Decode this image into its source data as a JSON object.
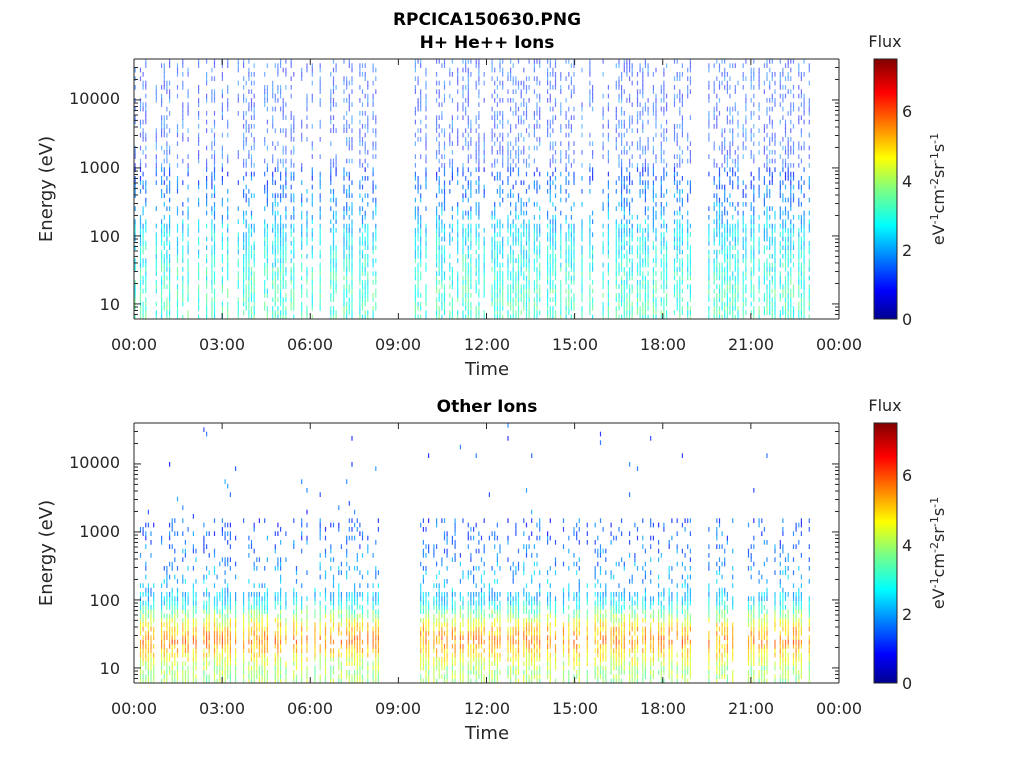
{
  "figure": {
    "title_line1": "RPCICA150630.PNG"
  },
  "chart_data": [
    {
      "type": "heatmap",
      "title": "H+ He++ Ions",
      "xlabel": "Time",
      "ylabel": "Energy (eV)",
      "x_ticks": [
        "00:00",
        "03:00",
        "06:00",
        "09:00",
        "12:00",
        "15:00",
        "18:00",
        "21:00",
        "00:00"
      ],
      "x_range_hours": [
        0,
        24
      ],
      "y_scale": "log",
      "y_range_eV": [
        6,
        40000
      ],
      "y_ticks": [
        "10",
        "100",
        "1000",
        "10000"
      ],
      "data_gap_hours": [
        [
          8.3,
          9.5
        ],
        [
          19.0,
          19.5
        ]
      ],
      "colorbar": {
        "title": "Flux",
        "label": "eV-1cm-2sr-1s-1",
        "range": [
          0,
          7.5
        ],
        "ticks": [
          "0",
          "2",
          "4",
          "6"
        ],
        "colormap": "jet"
      },
      "energy_profile": [
        {
          "energy_eV": 10,
          "flux": 3.2
        },
        {
          "energy_eV": 30,
          "flux": 3.0
        },
        {
          "energy_eV": 100,
          "flux": 2.6
        },
        {
          "energy_eV": 300,
          "flux": 1.9
        },
        {
          "energy_eV": 1000,
          "flux": 1.5
        },
        {
          "energy_eV": 10000,
          "flux": 1.4
        }
      ]
    },
    {
      "type": "heatmap",
      "title": "Other Ions",
      "xlabel": "Time",
      "ylabel": "Energy (eV)",
      "x_ticks": [
        "00:00",
        "03:00",
        "06:00",
        "09:00",
        "12:00",
        "15:00",
        "18:00",
        "21:00",
        "00:00"
      ],
      "x_range_hours": [
        0,
        24
      ],
      "y_scale": "log",
      "y_range_eV": [
        6,
        40000
      ],
      "y_ticks": [
        "10",
        "100",
        "1000",
        "10000"
      ],
      "data_gap_hours": [
        [
          8.3,
          9.5
        ],
        [
          19.0,
          19.5
        ]
      ],
      "colorbar": {
        "title": "Flux",
        "label": "eV-1cm-2sr-1s-1",
        "range": [
          0,
          7.5
        ],
        "ticks": [
          "0",
          "2",
          "4",
          "6"
        ],
        "colormap": "jet"
      },
      "energy_profile": [
        {
          "energy_eV": 10,
          "flux": 4.0
        },
        {
          "energy_eV": 25,
          "flux": 5.6
        },
        {
          "energy_eV": 40,
          "flux": 5.0
        },
        {
          "energy_eV": 100,
          "flux": 2.4
        },
        {
          "energy_eV": 300,
          "flux": 2.0
        },
        {
          "energy_eV": 1000,
          "flux": 1.5
        }
      ]
    }
  ]
}
